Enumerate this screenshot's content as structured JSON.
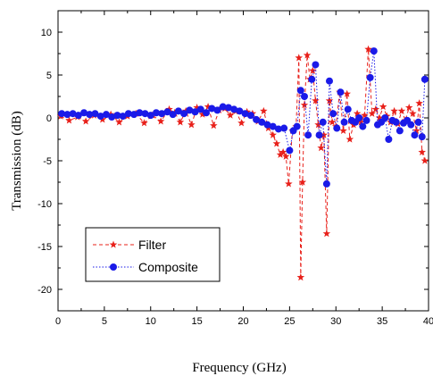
{
  "chart_data": {
    "type": "line",
    "title": "",
    "xlabel": "Frequency (GHz)",
    "ylabel": "Transmission (dB)",
    "xlim": [
      0,
      40
    ],
    "ylim": [
      -22.5,
      12.5
    ],
    "xticks": [
      0,
      5,
      10,
      15,
      20,
      25,
      30,
      35,
      40
    ],
    "xtick_labels": [
      "0",
      "5",
      "10",
      "15",
      "20",
      "25",
      "30",
      "35",
      "40"
    ],
    "yticks": [
      -20,
      -15,
      -10,
      -5,
      0,
      5,
      10
    ],
    "ytick_labels": [
      "-20",
      "-15",
      "-10",
      "-5",
      "0",
      "5",
      "10"
    ],
    "grid": false,
    "legend_position": "lower-left",
    "series": [
      {
        "name": "Filter",
        "color": "#e8201a",
        "line_style": "dashed",
        "marker": "star",
        "x": [
          0.3,
          1.2,
          2.1,
          3.0,
          3.9,
          4.8,
          5.7,
          6.6,
          7.5,
          8.4,
          9.3,
          10.2,
          11.1,
          12.0,
          12.6,
          13.2,
          13.8,
          14.4,
          15.0,
          15.6,
          16.2,
          16.8,
          17.4,
          18.0,
          18.6,
          19.2,
          19.8,
          20.4,
          21.0,
          21.6,
          22.2,
          22.7,
          23.2,
          23.6,
          24.0,
          24.3,
          24.6,
          24.9,
          25.3,
          25.7,
          26.0,
          26.2,
          26.4,
          26.6,
          26.9,
          27.2,
          27.5,
          27.8,
          28.1,
          28.4,
          28.7,
          29.0,
          29.3,
          29.6,
          30.0,
          30.4,
          30.8,
          31.2,
          31.5,
          31.9,
          32.3,
          32.7,
          33.1,
          33.5,
          33.9,
          34.3,
          34.7,
          35.1,
          35.5,
          35.9,
          36.3,
          36.7,
          37.1,
          37.5,
          37.9,
          38.3,
          38.7,
          39.0,
          39.3,
          39.6
        ],
        "y": [
          0.2,
          -0.3,
          0.1,
          -0.4,
          0.3,
          -0.2,
          0.4,
          -0.5,
          0.2,
          0.5,
          -0.6,
          0.3,
          -0.4,
          1.0,
          0.6,
          -0.5,
          0.8,
          -0.8,
          1.2,
          0.4,
          1.3,
          -0.9,
          0.9,
          1.1,
          0.3,
          0.8,
          -0.6,
          0.7,
          0.5,
          -0.4,
          0.8,
          -1.2,
          -2.0,
          -3.0,
          -4.3,
          -4.0,
          -4.5,
          -7.7,
          -1.5,
          -1.0,
          7.0,
          -18.6,
          -7.5,
          1.5,
          7.3,
          4.5,
          5.5,
          2.0,
          -0.8,
          -3.5,
          -2.0,
          -13.5,
          2.0,
          -0.5,
          -1.0,
          3.0,
          -1.5,
          2.8,
          -2.5,
          -0.8,
          0.5,
          -0.5,
          0.3,
          8.0,
          0.5,
          1.0,
          0.0,
          1.3,
          0.2,
          -0.5,
          0.8,
          -0.7,
          0.8,
          -0.3,
          1.2,
          0.5,
          -1.5,
          1.7,
          -4.0,
          -5.0
        ]
      },
      {
        "name": "Composite",
        "color": "#1a1ae8",
        "line_style": "dotted",
        "marker": "circle",
        "x": [
          0.4,
          1.0,
          1.6,
          2.2,
          2.8,
          3.4,
          4.0,
          4.6,
          5.2,
          5.8,
          6.4,
          7.0,
          7.6,
          8.2,
          8.8,
          9.4,
          10.0,
          10.6,
          11.2,
          11.8,
          12.4,
          13.0,
          13.6,
          14.2,
          14.8,
          15.4,
          16.0,
          16.6,
          17.2,
          17.8,
          18.4,
          19.0,
          19.6,
          20.2,
          20.8,
          21.4,
          22.0,
          22.6,
          23.2,
          23.8,
          24.4,
          25.0,
          25.4,
          25.8,
          26.2,
          26.6,
          27.0,
          27.4,
          27.8,
          28.2,
          28.6,
          29.0,
          29.3,
          29.7,
          30.1,
          30.5,
          30.9,
          31.3,
          31.7,
          32.1,
          32.5,
          32.9,
          33.3,
          33.7,
          34.1,
          34.5,
          34.9,
          35.3,
          35.7,
          36.1,
          36.5,
          36.9,
          37.3,
          37.7,
          38.1,
          38.5,
          38.9,
          39.3,
          39.6
        ],
        "y": [
          0.5,
          0.4,
          0.5,
          0.3,
          0.6,
          0.4,
          0.5,
          0.2,
          0.4,
          0.1,
          0.3,
          0.2,
          0.5,
          0.4,
          0.6,
          0.5,
          0.3,
          0.6,
          0.5,
          0.7,
          0.4,
          0.8,
          0.5,
          0.9,
          0.7,
          1.0,
          0.6,
          1.1,
          0.9,
          1.3,
          1.2,
          1.0,
          0.8,
          0.5,
          0.3,
          -0.2,
          -0.5,
          -0.8,
          -1.0,
          -1.3,
          -1.2,
          -3.8,
          -1.5,
          -1.0,
          3.2,
          2.5,
          -2.0,
          4.5,
          6.2,
          -2.0,
          -0.5,
          -7.7,
          4.3,
          0.5,
          -1.2,
          3.0,
          -0.5,
          1.0,
          -0.3,
          -0.5,
          0.0,
          -1.0,
          -0.3,
          4.7,
          7.8,
          -0.8,
          -0.5,
          0.0,
          -2.5,
          -0.3,
          -0.5,
          -1.5,
          -0.6,
          -0.3,
          -0.8,
          -2.0,
          -0.5,
          -2.2,
          4.5
        ]
      }
    ]
  }
}
